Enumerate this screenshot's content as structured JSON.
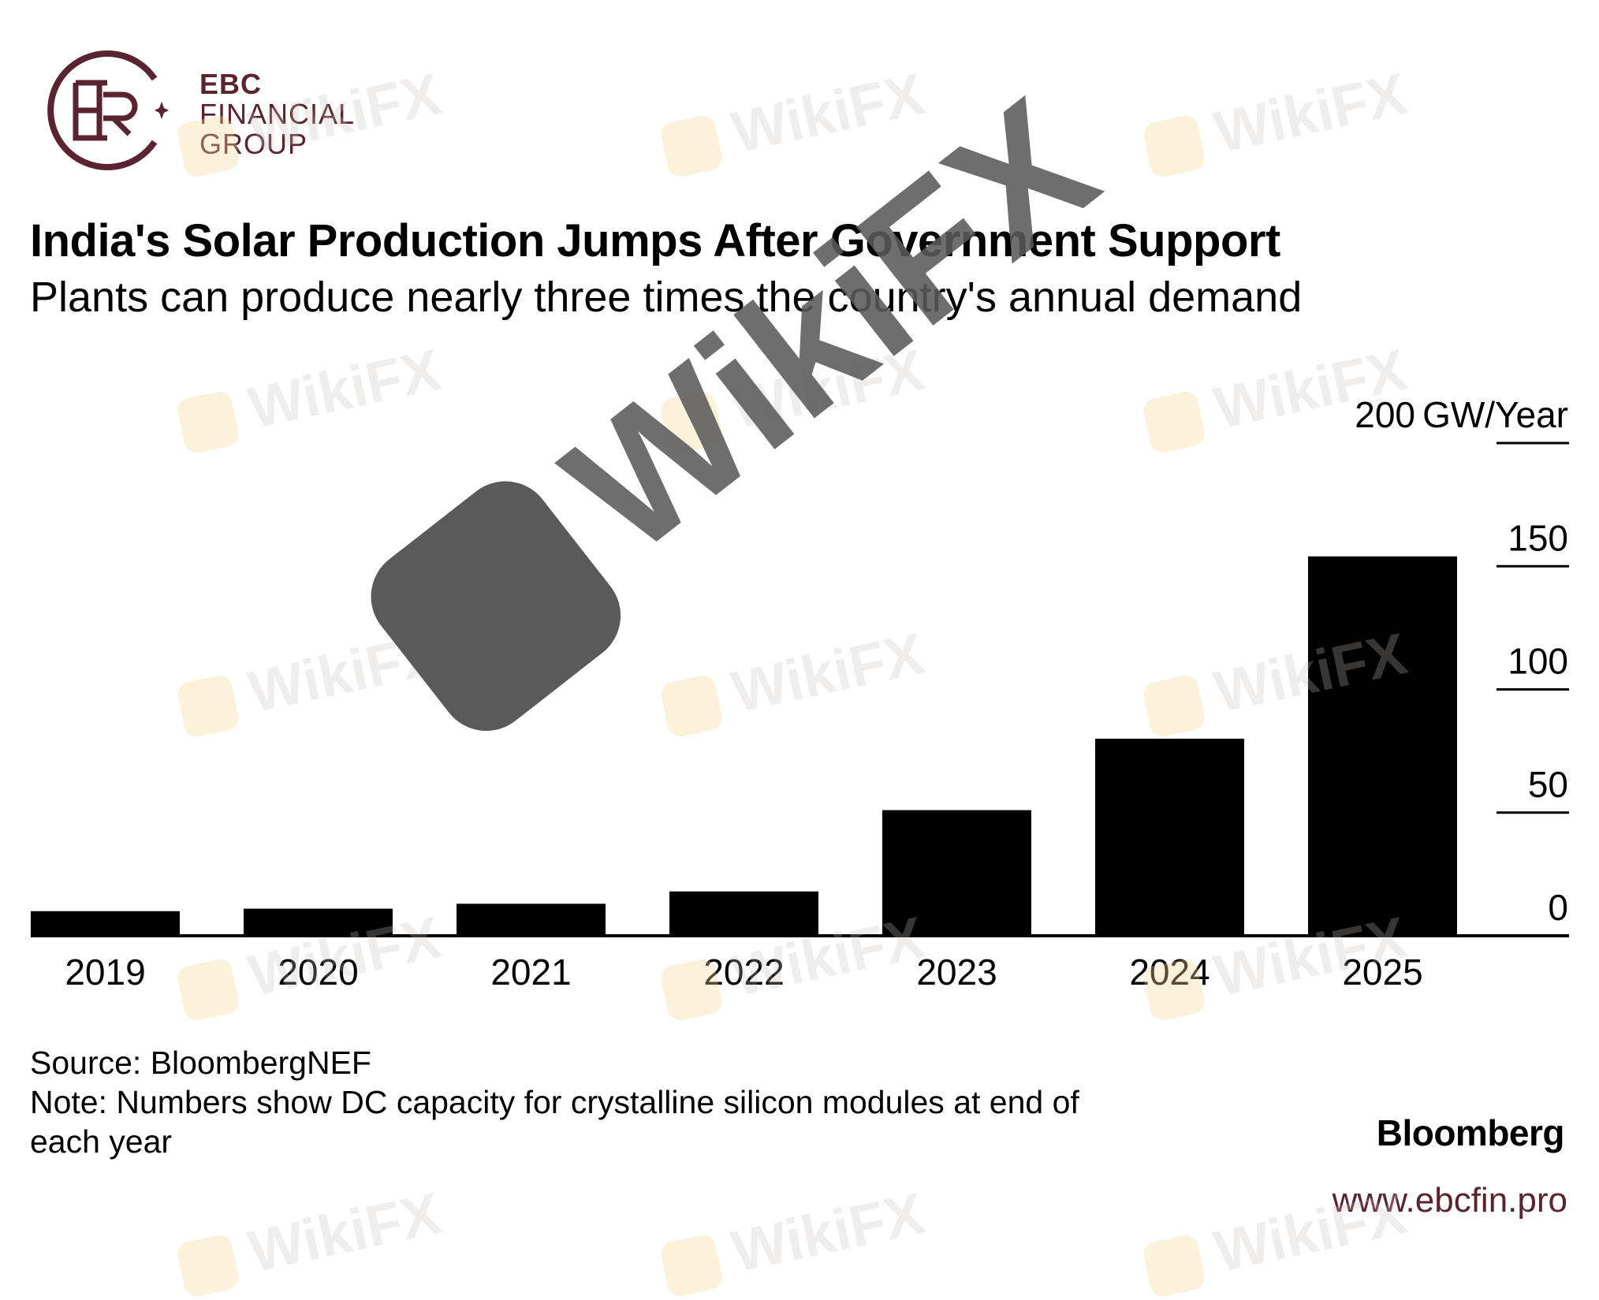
{
  "logo": {
    "line1": "EBC",
    "line2": "FINANCIAL",
    "line3": "GROUP"
  },
  "title": "India's Solar Production Jumps After Government Support",
  "subtitle": "Plants can produce nearly three times the country's annual demand",
  "footer": {
    "source": "Source: BloombergNEF",
    "note_line1": "Note: Numbers show DC capacity for crystalline silicon modules at end of",
    "note_line2": "each year",
    "brand": "Bloomberg",
    "url": "www.ebcfin.pro"
  },
  "watermark": "WikiFX",
  "colors": {
    "bar": "#000000",
    "brand": "#5a2330"
  },
  "chart_data": {
    "type": "bar",
    "title": "India's Solar Production Jumps After Government Support",
    "categories": [
      "2019",
      "2020",
      "2021",
      "2022",
      "2023",
      "2024",
      "2025"
    ],
    "values": [
      10,
      11,
      13,
      18,
      51,
      80,
      154
    ],
    "xlabel": "",
    "ylabel": "GW/Year",
    "unit_label": "GW/Year",
    "ylim": [
      0,
      200
    ],
    "yticks": [
      0,
      50,
      100,
      150,
      200
    ],
    "ytick_labels": [
      "0",
      "50",
      "100",
      "150",
      "200"
    ],
    "axis_side": "right",
    "grid": false,
    "legend": "none"
  }
}
